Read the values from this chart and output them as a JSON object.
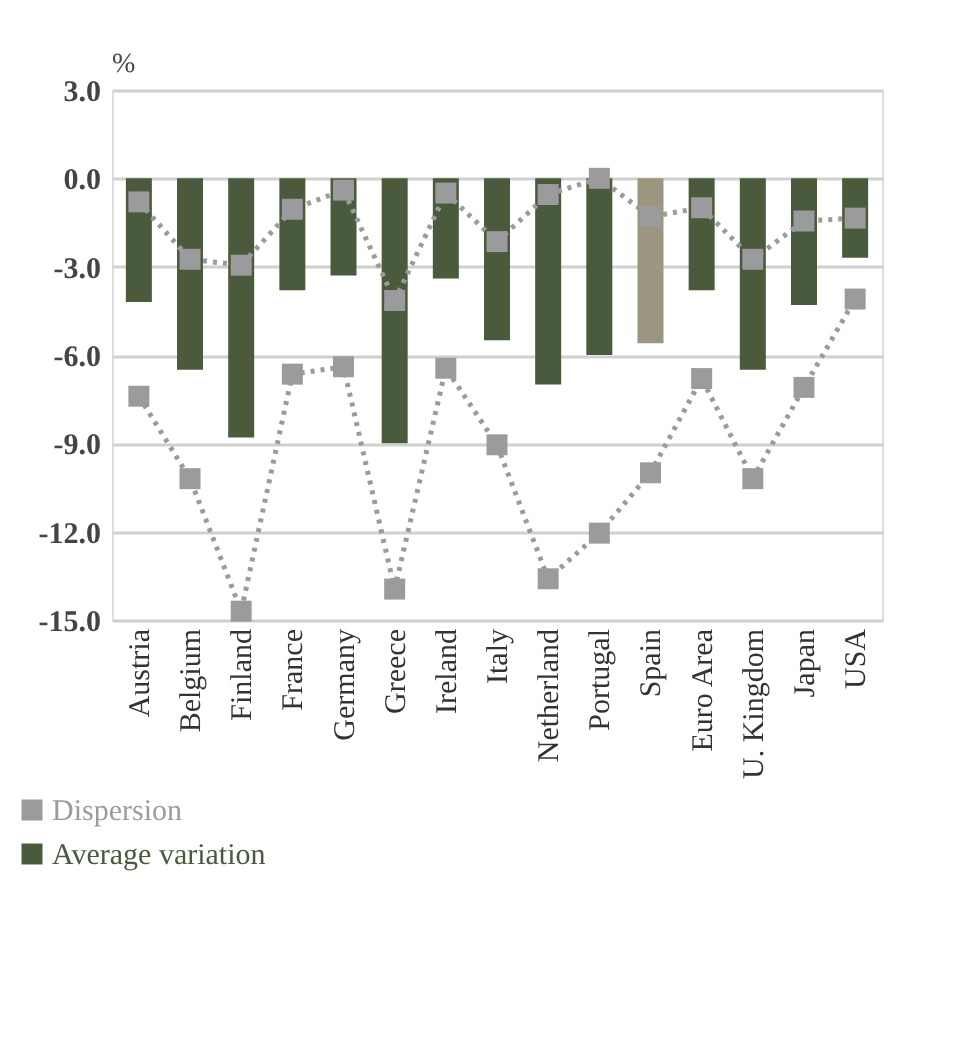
{
  "chart_data": {
    "type": "bar",
    "ylabel": "%",
    "categories": [
      "Austria",
      "Belgium",
      "Finland",
      "France",
      "Germany",
      "Greece",
      "Ireland",
      "Italy",
      "Netherland",
      "Portugal",
      "Spain",
      "Euro Area",
      "U. Kingdom",
      "Japan",
      "USA"
    ],
    "series": [
      {
        "name": "Average variation",
        "color": "#4a5a3c",
        "colors": [
          "#4a5a3c",
          "#4a5a3c",
          "#4a5a3c",
          "#4a5a3c",
          "#4a5a3c",
          "#4a5a3c",
          "#4a5a3c",
          "#4a5a3c",
          "#4a5a3c",
          "#4a5a3c",
          "#9c9680",
          "#4a5a3c",
          "#4a5a3c",
          "#4a5a3c",
          "#4a5a3c"
        ],
        "values": [
          -4.2,
          -6.5,
          -8.8,
          -3.8,
          -3.3,
          -9.0,
          -3.4,
          -5.5,
          -7.0,
          -6.0,
          -5.6,
          -3.8,
          -6.5,
          -4.3,
          -2.7
        ]
      },
      {
        "type": "line",
        "name": "Dispersion",
        "color": "#9b9b9e",
        "marker": "square",
        "line_style": "dotted",
        "values": [
          -0.8,
          -2.75,
          -2.95,
          -1.05,
          -0.4,
          -4.15,
          -0.5,
          -2.15,
          -0.55,
          0.0,
          -1.3,
          -1.0,
          -2.75,
          -1.45,
          -1.35
        ]
      },
      {
        "type": "line",
        "color": "#9b9b9e",
        "marker": "square",
        "line_style": "dotted",
        "values": [
          -7.4,
          -10.2,
          -14.7,
          -6.65,
          -6.4,
          -13.95,
          -6.45,
          -9.05,
          -13.6,
          -12.05,
          -10.0,
          -6.8,
          -10.2,
          -7.1,
          -4.1
        ]
      }
    ],
    "ylim": [
      -15.0,
      3.0
    ],
    "yticks": [
      {
        "value": -15,
        "label": "-15.0"
      },
      {
        "value": -12,
        "label": "-12.0"
      },
      {
        "value": -9,
        "label": "-9.0"
      },
      {
        "value": -6,
        "label": "-6.0"
      },
      {
        "value": -3,
        "label": "-3.0"
      },
      {
        "value": 0,
        "label": "0.0"
      },
      {
        "value": 3,
        "label": "3.0"
      }
    ],
    "grid": "y",
    "legend": "bottom left"
  }
}
